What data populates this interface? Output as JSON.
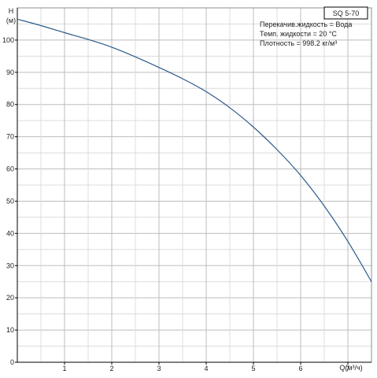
{
  "chart_data": {
    "type": "line",
    "model": "SQ 5-70",
    "ylabel_top": "H",
    "ylabel_unit": "(м)",
    "xlabel": "Q(м³/ч)",
    "xlim": [
      0,
      7.5
    ],
    "ylim": [
      0,
      110
    ],
    "x_ticks": [
      1,
      2,
      3,
      4,
      5,
      6,
      7
    ],
    "y_ticks": [
      0,
      10,
      20,
      30,
      40,
      50,
      60,
      70,
      80,
      90,
      100
    ],
    "grid": true,
    "info_lines": [
      "Перекачив.жидкость = Вода",
      "Темп. жидкости = 20 °C",
      "Плотность = 998.2 кг/м³"
    ],
    "series": [
      {
        "color": "#2b5a8a",
        "x": [
          0,
          0.5,
          1,
          1.5,
          2,
          2.5,
          3,
          3.5,
          4,
          4.5,
          5,
          5.5,
          6,
          6.5,
          7,
          7.5
        ],
        "y": [
          106.5,
          104.5,
          102.3,
          100.2,
          97.8,
          94.8,
          91.5,
          88.0,
          84.0,
          79.0,
          73.0,
          66.0,
          58.0,
          48.5,
          37.5,
          25.0
        ]
      }
    ]
  }
}
